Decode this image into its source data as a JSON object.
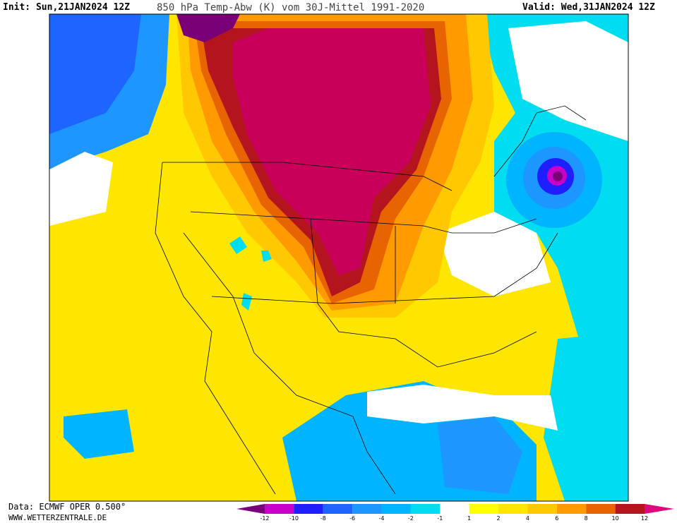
{
  "header": {
    "init": "Init: Sun,21JAN2024 12Z",
    "title": "850 hPa Temp-Abw (K) vom 30J-Mittel 1991-2020",
    "valid": "Valid: Wed,31JAN2024 12Z"
  },
  "footer": {
    "data_source": "Data: ECMWF OPER 0.500°",
    "website": "WWW.WETTERZENTRALE.DE"
  },
  "legend": {
    "labels": [
      -12,
      -10,
      -8,
      -6,
      -4,
      -2,
      -1,
      1,
      2,
      4,
      6,
      8,
      10,
      12
    ],
    "low_color": "#7a0078",
    "high_color": "#e0087c",
    "colors": [
      "#c800c8",
      "#1e1eff",
      "#1e64ff",
      "#1e96ff",
      "#00b4ff",
      "#00dcf0",
      "#ffffff",
      "#ffff00",
      "#ffe600",
      "#ffc800",
      "#ff9b00",
      "#e86400",
      "#b4141e"
    ]
  }
}
